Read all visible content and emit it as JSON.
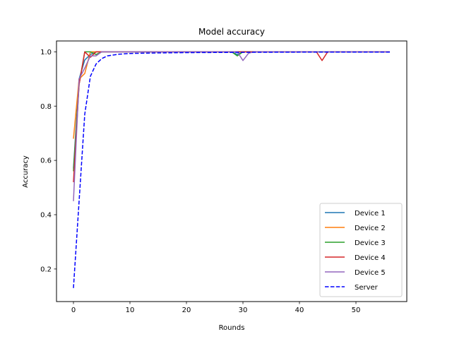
{
  "chart_data": {
    "type": "line",
    "title": "Model accuracy",
    "xlabel": "Rounds",
    "ylabel": "Accuracy",
    "xlim": [
      -3,
      59
    ],
    "ylim": [
      0.08,
      1.04
    ],
    "xticks": [
      0,
      10,
      20,
      30,
      40,
      50
    ],
    "yticks": [
      0.2,
      0.4,
      0.6,
      0.8,
      1.0
    ],
    "xtick_labels": [
      "0",
      "10",
      "20",
      "30",
      "40",
      "50"
    ],
    "ytick_labels": [
      "0.2",
      "0.4",
      "0.6",
      "0.8",
      "1.0"
    ],
    "grid": false,
    "legend_position": "lower-right",
    "series": [
      {
        "name": "Device 1",
        "color": "#1f77b4",
        "style": "solid",
        "points": [
          [
            0,
            0.57
          ],
          [
            1,
            0.9
          ],
          [
            2,
            0.97
          ],
          [
            3,
            0.99
          ],
          [
            4,
            1.0
          ],
          [
            28,
            1.0
          ],
          [
            29,
            0.99
          ],
          [
            30,
            1.0
          ],
          [
            56,
            1.0
          ]
        ]
      },
      {
        "name": "Device 2",
        "color": "#ff7f0e",
        "style": "solid",
        "points": [
          [
            0,
            0.68
          ],
          [
            1,
            0.9
          ],
          [
            2,
            0.92
          ],
          [
            3,
            1.0
          ],
          [
            56,
            1.0
          ]
        ]
      },
      {
        "name": "Device 3",
        "color": "#2ca02c",
        "style": "solid",
        "points": [
          [
            0,
            0.56
          ],
          [
            1,
            0.88
          ],
          [
            2,
            1.0
          ],
          [
            3,
            1.0
          ],
          [
            4,
            0.99
          ],
          [
            5,
            1.0
          ],
          [
            28,
            1.0
          ],
          [
            29,
            0.985
          ],
          [
            30,
            1.0
          ],
          [
            56,
            1.0
          ]
        ]
      },
      {
        "name": "Device 4",
        "color": "#d62728",
        "style": "solid",
        "points": [
          [
            0,
            0.52
          ],
          [
            1,
            0.88
          ],
          [
            2,
            1.0
          ],
          [
            3,
            0.98
          ],
          [
            4,
            1.0
          ],
          [
            43,
            1.0
          ],
          [
            44,
            0.968
          ],
          [
            45,
            1.0
          ],
          [
            56,
            1.0
          ]
        ]
      },
      {
        "name": "Device 5",
        "color": "#9467bd",
        "style": "solid",
        "points": [
          [
            0,
            0.45
          ],
          [
            1,
            0.9
          ],
          [
            2,
            0.94
          ],
          [
            3,
            0.985
          ],
          [
            4,
            0.985
          ],
          [
            5,
            1.0
          ],
          [
            29,
            1.0
          ],
          [
            30,
            0.968
          ],
          [
            31,
            0.995
          ],
          [
            32,
            1.0
          ],
          [
            56,
            1.0
          ]
        ]
      },
      {
        "name": "Server",
        "color": "#0000ff",
        "style": "dashed",
        "points": [
          [
            0,
            0.13
          ],
          [
            1,
            0.45
          ],
          [
            2,
            0.77
          ],
          [
            3,
            0.91
          ],
          [
            4,
            0.955
          ],
          [
            5,
            0.975
          ],
          [
            6,
            0.985
          ],
          [
            8,
            0.991
          ],
          [
            10,
            0.994
          ],
          [
            15,
            0.996
          ],
          [
            20,
            0.997
          ],
          [
            30,
            0.998
          ],
          [
            40,
            0.999
          ],
          [
            56,
            0.999
          ]
        ]
      }
    ]
  }
}
